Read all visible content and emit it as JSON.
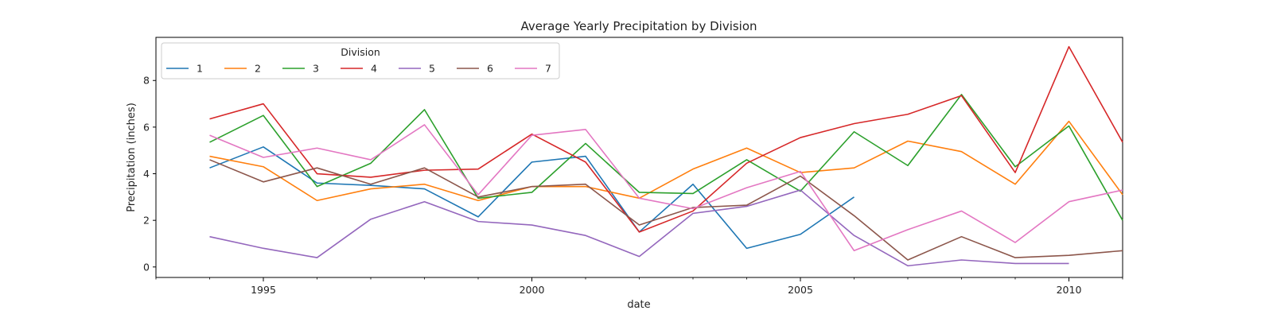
{
  "chart_data": {
    "type": "line",
    "title": "Average Yearly Precipitation by Division",
    "xlabel": "date",
    "ylabel": "Precipitation (inches)",
    "xlim": [
      1993,
      2011
    ],
    "ylim": [
      -0.45,
      9.85
    ],
    "x_ticks": [
      1995,
      2000,
      2005,
      2010
    ],
    "y_ticks": [
      0,
      2,
      4,
      6,
      8
    ],
    "grid": false,
    "legend": {
      "title": "Division",
      "placement": "top-left"
    },
    "x": [
      1994,
      1995,
      1996,
      1997,
      1998,
      1999,
      2000,
      2001,
      2002,
      2003,
      2004,
      2005,
      2006,
      2007,
      2008,
      2009,
      2010,
      2011
    ],
    "series": [
      {
        "name": "1",
        "color": "#1f77b4",
        "values": [
          4.25,
          5.15,
          3.6,
          3.5,
          3.35,
          2.15,
          4.5,
          4.75,
          1.5,
          3.55,
          0.8,
          1.4,
          3.0,
          null,
          null,
          null,
          null,
          null
        ]
      },
      {
        "name": "2",
        "color": "#ff7f0e",
        "values": [
          4.75,
          4.3,
          2.85,
          3.35,
          3.55,
          2.85,
          3.45,
          3.45,
          2.95,
          4.2,
          5.1,
          4.05,
          4.25,
          5.4,
          4.95,
          3.55,
          6.25,
          3.1
        ]
      },
      {
        "name": "3",
        "color": "#2ca02c",
        "values": [
          5.35,
          6.5,
          3.45,
          4.45,
          6.75,
          2.95,
          3.2,
          5.3,
          3.2,
          3.15,
          4.6,
          3.25,
          5.8,
          4.35,
          7.4,
          4.3,
          6.05,
          2.0
        ]
      },
      {
        "name": "4",
        "color": "#d62728",
        "values": [
          6.35,
          7.0,
          4.0,
          3.85,
          4.15,
          4.2,
          5.7,
          4.5,
          1.5,
          2.4,
          4.45,
          5.55,
          6.15,
          6.55,
          7.35,
          4.05,
          9.45,
          5.35
        ]
      },
      {
        "name": "5",
        "color": "#9467bd",
        "values": [
          1.3,
          0.8,
          0.4,
          2.05,
          2.8,
          1.95,
          1.8,
          1.35,
          0.45,
          2.3,
          2.6,
          3.3,
          1.35,
          0.05,
          0.3,
          0.15,
          0.15,
          null
        ]
      },
      {
        "name": "6",
        "color": "#8c564b",
        "values": [
          4.6,
          3.65,
          4.25,
          3.55,
          4.25,
          3.0,
          3.45,
          3.55,
          1.8,
          2.55,
          2.65,
          3.9,
          2.2,
          0.3,
          1.3,
          0.4,
          0.5,
          0.7
        ]
      },
      {
        "name": "7",
        "color": "#e377c2",
        "values": [
          5.65,
          4.7,
          5.1,
          4.6,
          6.1,
          3.1,
          5.65,
          5.9,
          2.95,
          2.5,
          3.4,
          4.1,
          0.7,
          1.6,
          2.4,
          1.05,
          2.8,
          3.3
        ]
      }
    ]
  }
}
